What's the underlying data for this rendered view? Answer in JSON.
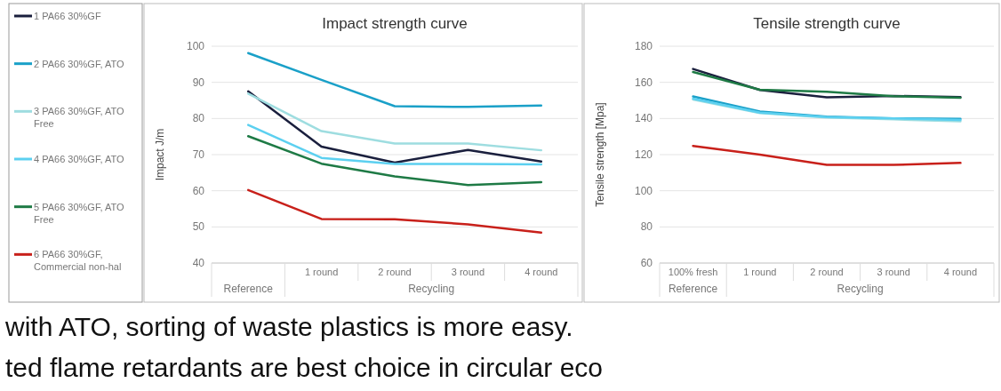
{
  "chart_data": [
    {
      "type": "line",
      "title": "Impact strength curve",
      "ylabel": "Impact J/m",
      "categories": [
        null,
        "1 round",
        "2 round",
        "3 round",
        "4 round"
      ],
      "series": [
        {
          "name": "1 PA66 30%GF",
          "color": "#1a1f3d",
          "values": [
            87.5,
            72.2,
            67.8,
            71.3,
            68.1
          ]
        },
        {
          "name": "2 PA66 30%GF, ATO",
          "color": "#1aa0c8",
          "values": [
            98.1,
            90.7,
            83.4,
            83.2,
            83.6
          ]
        },
        {
          "name": "3 PA66 30%GF, ATO Free",
          "color": "#9edde0",
          "values": [
            86.9,
            76.5,
            73.1,
            73.1,
            71.2
          ]
        },
        {
          "name": "4 PA66 30%GF, ATO",
          "color": "#5cd0f0",
          "values": [
            78.2,
            69.1,
            67.4,
            67.4,
            67.3
          ]
        },
        {
          "name": "5 PA66 30%GF, ATO Free",
          "color": "#1e7a45",
          "values": [
            75.1,
            67.5,
            64.0,
            61.6,
            62.4
          ]
        },
        {
          "name": "6 PA66 30%GF, Commercial non-hal",
          "color": "#c8201a",
          "values": [
            60.2,
            52.2,
            52.1,
            50.7,
            48.4
          ]
        }
      ],
      "ylim": [
        40,
        100
      ],
      "yticks": [
        40,
        50,
        60,
        70,
        80,
        90,
        100
      ],
      "grid": "y",
      "legend": "left",
      "annotations": [
        "Reference",
        "Recycling",
        "with ATO, sorting of waste plastics is more easy.",
        "ted flame retardants are best choice in circular eco"
      ]
    },
    {
      "type": "line",
      "title": "Tensile strength curve",
      "ylabel": "Tensile strength [Mpa]",
      "categories": [
        "100% fresh",
        "1 round",
        "2 round",
        "3 round",
        "4 round"
      ],
      "series": [
        {
          "color": "#1a1f3d",
          "values": [
            167.4,
            155.8,
            151.7,
            152.5,
            151.8
          ]
        },
        {
          "color": "#1aa0c8",
          "values": [
            152.2,
            143.9,
            141.0,
            140.1,
            139.8
          ]
        },
        {
          "color": "#9edde0",
          "values": [
            150.5,
            143.0,
            140.5,
            139.5,
            138.5
          ]
        },
        {
          "color": "#5cd0f0",
          "values": [
            151.0,
            143.2,
            140.8,
            140.0,
            139.2
          ]
        },
        {
          "color": "#1e7a45",
          "values": [
            165.7,
            155.9,
            154.8,
            152.3,
            151.5
          ]
        },
        {
          "color": "#c8201a",
          "values": [
            124.8,
            120.0,
            114.3,
            114.3,
            115.4
          ]
        }
      ],
      "ylim": [
        60,
        180
      ],
      "yticks": [
        60,
        80,
        100,
        120,
        140,
        160,
        180
      ],
      "grid": "y",
      "annotations": [
        "Reference",
        "Recycling"
      ]
    }
  ]
}
